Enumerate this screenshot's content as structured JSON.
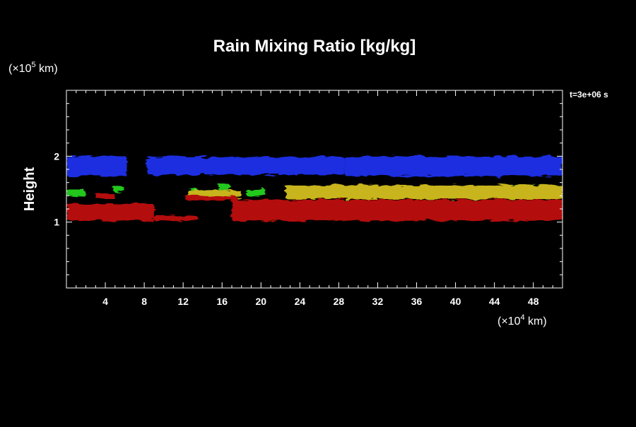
{
  "chart_data": {
    "type": "heatmap",
    "title": "Rain Mixing Ratio [kg/kg]",
    "ylabel": "Height",
    "y_unit_label": "(×10",
    "y_unit_exp": "5",
    "y_unit_suffix": " km)",
    "x_unit_label": "(×10",
    "x_unit_exp": "4",
    "x_unit_suffix": " km)",
    "time_label": "t=3e+06 s",
    "xlim": [
      0,
      51
    ],
    "ylim": [
      0,
      3
    ],
    "x_ticks": [
      4,
      8,
      12,
      16,
      20,
      24,
      28,
      32,
      36,
      40,
      44,
      48
    ],
    "y_ticks": [
      1,
      2
    ],
    "x_minor_step": 1,
    "y_minor_step": 0.2,
    "colors": {
      "blue": "#1a2ee0",
      "green": "#22c81a",
      "yellow": "#c8b41e",
      "red": "#b41008",
      "background": "#000000",
      "axis": "#ffffff"
    },
    "bands": [
      {
        "color": "blue",
        "x": [
          0.0,
          6.2
        ],
        "y": [
          1.7,
          2.0
        ]
      },
      {
        "color": "blue",
        "x": [
          8.3,
          28.6
        ],
        "y": [
          1.72,
          1.99
        ]
      },
      {
        "color": "blue",
        "x": [
          28.6,
          51.0
        ],
        "y": [
          1.7,
          2.0
        ]
      },
      {
        "color": "green",
        "x": [
          0.0,
          1.9
        ],
        "y": [
          1.4,
          1.5
        ]
      },
      {
        "color": "green",
        "x": [
          4.8,
          5.9
        ],
        "y": [
          1.46,
          1.55
        ]
      },
      {
        "color": "green",
        "x": [
          12.6,
          13.6
        ],
        "y": [
          1.44,
          1.5
        ]
      },
      {
        "color": "green",
        "x": [
          15.6,
          16.8
        ],
        "y": [
          1.48,
          1.58
        ]
      },
      {
        "color": "green",
        "x": [
          18.5,
          20.5
        ],
        "y": [
          1.39,
          1.5
        ]
      },
      {
        "color": "green",
        "x": [
          44.4,
          51.0
        ],
        "y": [
          1.4,
          1.56
        ]
      },
      {
        "color": "yellow",
        "x": [
          12.5,
          18.0
        ],
        "y": [
          1.37,
          1.48
        ]
      },
      {
        "color": "yellow",
        "x": [
          22.5,
          51.0
        ],
        "y": [
          1.35,
          1.56
        ]
      },
      {
        "color": "red",
        "x": [
          3.0,
          5.0
        ],
        "y": [
          1.35,
          1.43
        ]
      },
      {
        "color": "red",
        "x": [
          12.2,
          17.5
        ],
        "y": [
          1.33,
          1.4
        ]
      },
      {
        "color": "red",
        "x": [
          0.0,
          9.0
        ],
        "y": [
          1.02,
          1.28
        ]
      },
      {
        "color": "red",
        "x": [
          9.0,
          13.5
        ],
        "y": [
          1.02,
          1.1
        ]
      },
      {
        "color": "red",
        "x": [
          17.0,
          51.0
        ],
        "y": [
          1.02,
          1.34
        ]
      }
    ]
  }
}
